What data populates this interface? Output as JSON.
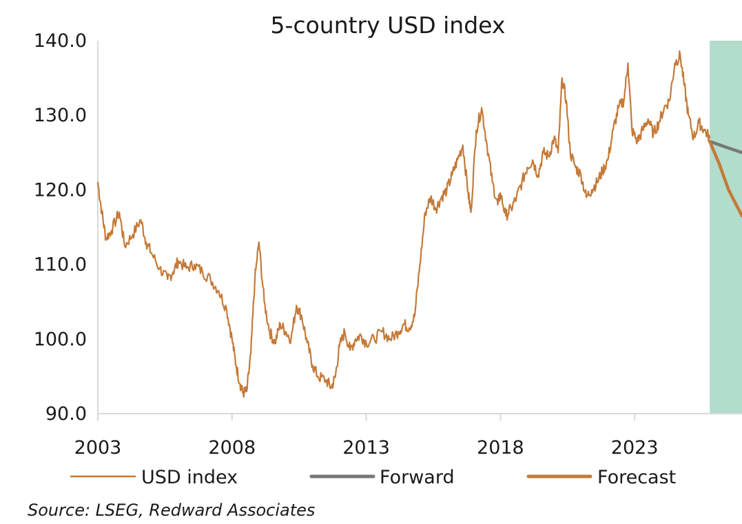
{
  "chart_data": {
    "type": "line",
    "title": "5-country USD index",
    "xlabel": "",
    "ylabel": "",
    "ylim": [
      90,
      140
    ],
    "xlim": [
      2003.0,
      2027.0
    ],
    "y_ticks": [
      "90.0",
      "100.0",
      "110.0",
      "120.0",
      "130.0",
      "140.0"
    ],
    "y_tick_values": [
      90,
      100,
      110,
      120,
      130,
      140
    ],
    "x_ticks": [
      "2003",
      "2008",
      "2013",
      "2018",
      "2023"
    ],
    "x_tick_values": [
      2003,
      2008,
      2013,
      2018,
      2023
    ],
    "shaded_region": {
      "x_start": 2025.8,
      "x_end": 2027.0,
      "color": "#b2dccb"
    },
    "colors": {
      "usd": "#c47a38",
      "forward": "#777777",
      "forecast": "#c47a38",
      "axis": "#d9d9d9",
      "text": "#1a1a1a"
    },
    "series": [
      {
        "name": "USD index",
        "x": [
          2003.0,
          2003.15,
          2003.3,
          2003.5,
          2003.8,
          2004.0,
          2004.3,
          2004.6,
          2004.8,
          2005.0,
          2005.3,
          2005.6,
          2005.8,
          2006.0,
          2006.3,
          2006.6,
          2006.9,
          2007.2,
          2007.5,
          2007.8,
          2008.0,
          2008.15,
          2008.3,
          2008.4,
          2008.55,
          2008.7,
          2008.85,
          2009.0,
          2009.2,
          2009.4,
          2009.6,
          2009.8,
          2010.0,
          2010.2,
          2010.4,
          2010.6,
          2010.8,
          2011.0,
          2011.2,
          2011.5,
          2011.7,
          2011.85,
          2012.0,
          2012.2,
          2012.4,
          2012.6,
          2012.8,
          2013.0,
          2013.3,
          2013.6,
          2013.9,
          2014.2,
          2014.4,
          2014.6,
          2014.8,
          2015.0,
          2015.2,
          2015.4,
          2015.6,
          2015.8,
          2016.0,
          2016.2,
          2016.4,
          2016.6,
          2016.8,
          2016.9,
          2017.1,
          2017.3,
          2017.5,
          2017.7,
          2017.9,
          2018.0,
          2018.2,
          2018.4,
          2018.6,
          2018.8,
          2019.0,
          2019.2,
          2019.4,
          2019.6,
          2019.8,
          2020.0,
          2020.15,
          2020.3,
          2020.45,
          2020.6,
          2020.8,
          2021.0,
          2021.2,
          2021.4,
          2021.6,
          2021.8,
          2022.0,
          2022.2,
          2022.4,
          2022.6,
          2022.75,
          2022.9,
          2023.1,
          2023.3,
          2023.5,
          2023.7,
          2023.9,
          2024.1,
          2024.3,
          2024.5,
          2024.7,
          2024.85,
          2025.0,
          2025.2,
          2025.4,
          2025.6,
          2025.8
        ],
        "values": [
          121,
          117,
          113.5,
          114.5,
          117,
          112.5,
          114,
          116,
          113,
          111.5,
          109.5,
          108,
          109,
          110.5,
          109.5,
          110,
          109,
          108,
          106.5,
          104,
          100,
          96.5,
          94,
          92.8,
          93,
          98,
          108,
          113,
          105,
          101,
          99.5,
          102,
          101,
          100,
          104.5,
          103,
          99.5,
          96.5,
          95,
          94.5,
          93.5,
          95,
          99,
          101,
          98.5,
          100,
          100.5,
          99.5,
          100,
          101,
          100,
          101,
          102,
          101.5,
          103,
          110,
          117,
          119,
          117.5,
          119,
          120,
          122,
          124,
          126,
          119.5,
          117,
          128,
          131,
          126,
          121,
          118,
          119.5,
          116.5,
          117.5,
          119,
          121,
          123,
          124,
          122,
          125,
          124.5,
          127,
          125,
          135,
          132,
          125,
          123,
          122,
          119,
          120,
          121,
          122.5,
          124,
          128,
          131,
          132,
          137,
          128,
          126.5,
          128,
          129.5,
          127.5,
          129,
          131,
          132,
          137,
          138,
          134,
          130,
          127,
          129,
          128,
          127
        ],
        "color": "#c47a38"
      },
      {
        "name": "Forward",
        "x": [
          2025.8,
          2026.5,
          2027.0
        ],
        "values": [
          126.5,
          125.6,
          125.0
        ],
        "color": "#777777"
      },
      {
        "name": "Forecast",
        "x": [
          2025.8,
          2026.15,
          2026.5,
          2027.0
        ],
        "values": [
          126.5,
          123.5,
          120.0,
          116.5
        ],
        "color": "#c47a38"
      }
    ],
    "legend": [
      {
        "label": "USD index",
        "style": "thin",
        "color": "#c47a38"
      },
      {
        "label": "Forward",
        "style": "thick",
        "color": "#777777"
      },
      {
        "label": "Forecast",
        "style": "thick",
        "color": "#c47a38"
      }
    ],
    "legend_position": "bottom",
    "source": "Source: LSEG, Redward Associates"
  }
}
